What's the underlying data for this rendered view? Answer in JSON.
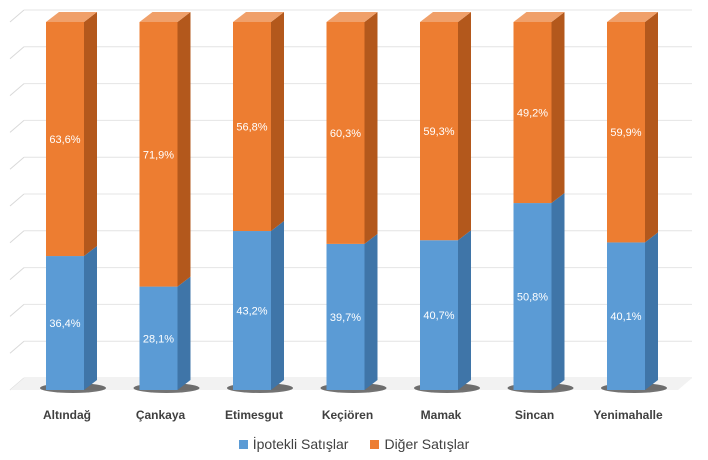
{
  "chart_data": {
    "type": "bar",
    "stacked": true,
    "percent_stacked": true,
    "three_d": true,
    "title": "",
    "xlabel": "",
    "ylabel": "",
    "ylim": [
      0,
      100
    ],
    "grid": true,
    "legend_position": "bottom",
    "categories": [
      "Altındağ",
      "Çankaya",
      "Etimesgut",
      "Keçiören",
      "Mamak",
      "Sincan",
      "Yenimahalle"
    ],
    "series": [
      {
        "name": "İpotekli Satışlar",
        "color": "#5b9bd5",
        "values": [
          36.4,
          28.1,
          43.2,
          39.7,
          40.7,
          50.8,
          40.1
        ],
        "labels": [
          "36,4%",
          "28,1%",
          "43,2%",
          "39,7%",
          "40,7%",
          "50,8%",
          "40,1%"
        ]
      },
      {
        "name": "Diğer Satışlar",
        "color": "#ed7d31",
        "values": [
          63.6,
          71.9,
          56.8,
          60.3,
          59.3,
          49.2,
          59.9
        ],
        "labels": [
          "63,6%",
          "71,9%",
          "56,8%",
          "60,3%",
          "59,3%",
          "49,2%",
          "59,9%"
        ]
      }
    ]
  }
}
